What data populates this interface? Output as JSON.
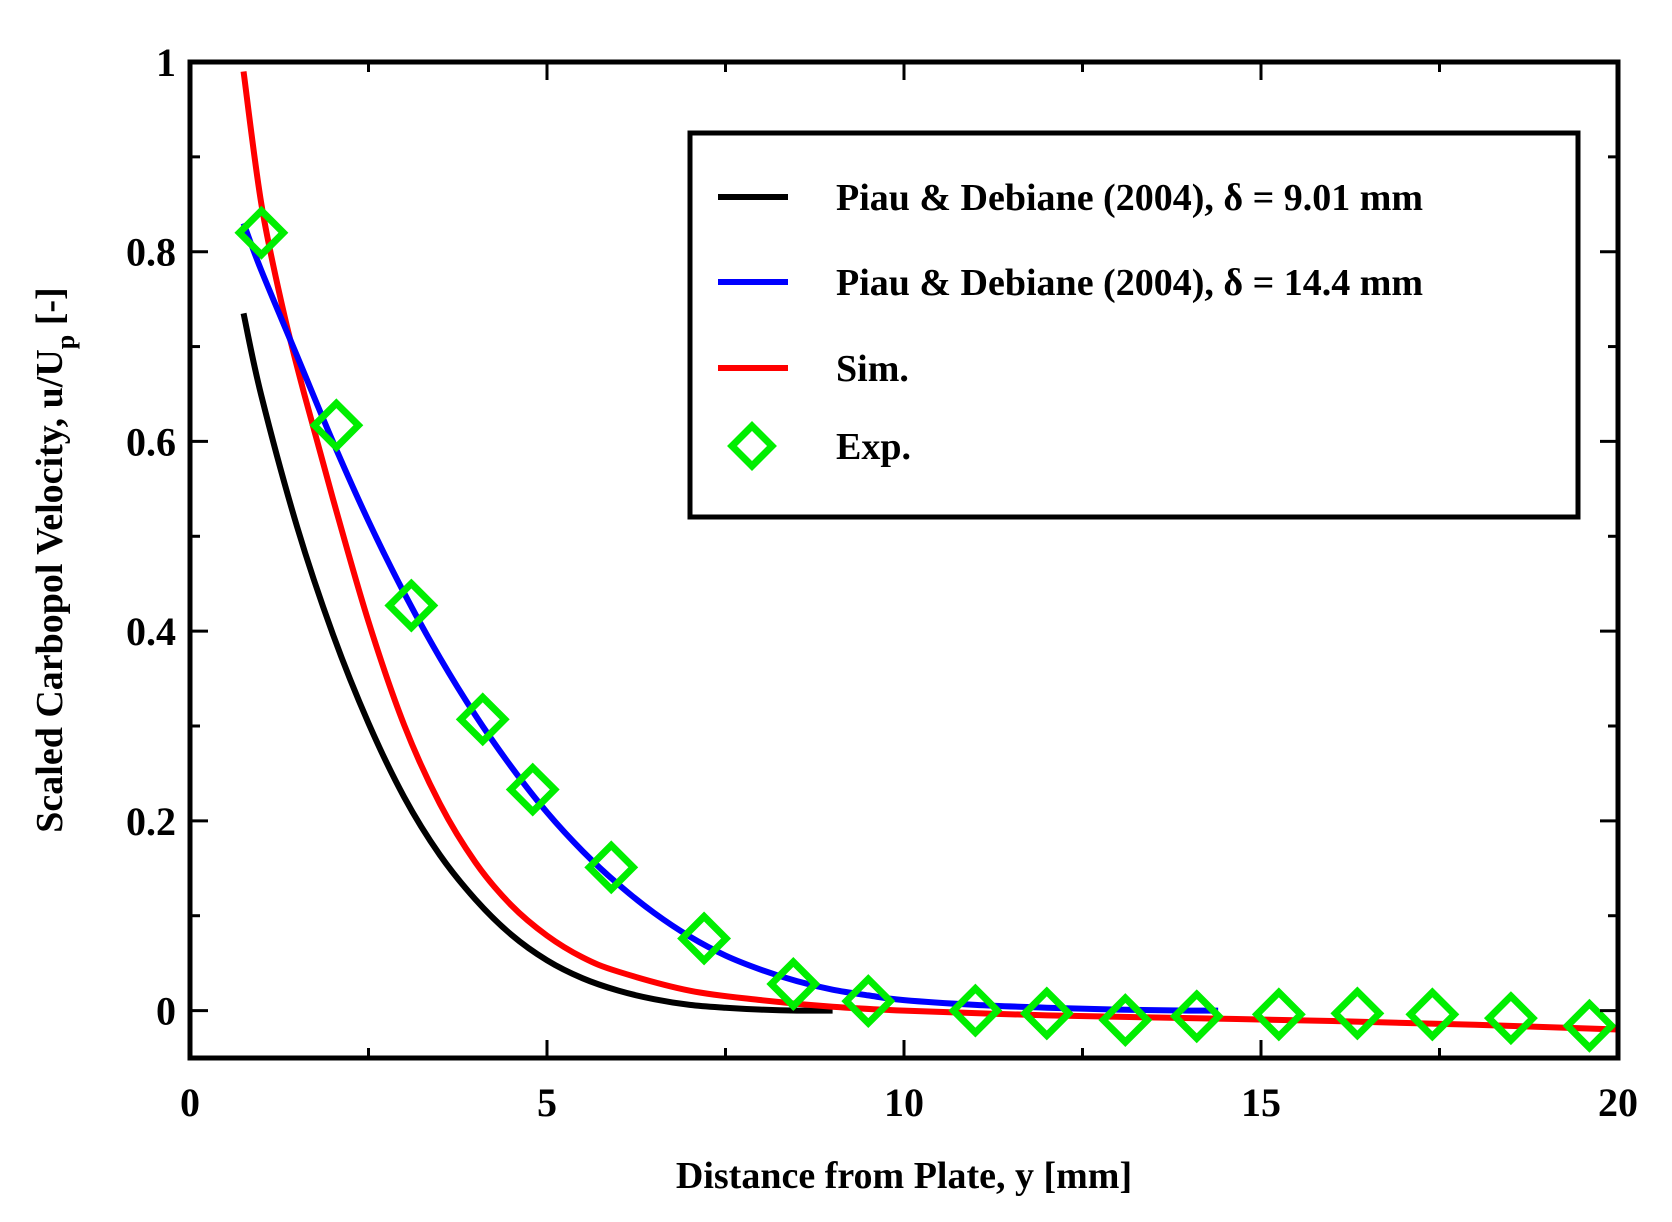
{
  "chart_data": {
    "type": "line",
    "title": "",
    "xlabel": "Distance from Plate, y [mm]",
    "ylabel_main": "Scaled Carbopol Velocity, u/U",
    "ylabel_sub": "p",
    "ylabel_tail": " [-]",
    "xlim": [
      0,
      20
    ],
    "ylim": [
      -0.05,
      1
    ],
    "x_ticks": [
      0,
      5,
      10,
      15,
      20
    ],
    "x_tick_labels": [
      "0",
      "5",
      "10",
      "15",
      "20"
    ],
    "y_ticks": [
      0,
      0.2,
      0.4,
      0.6,
      0.8,
      1
    ],
    "y_tick_labels": [
      "0",
      "0.2",
      "0.4",
      "0.6",
      "0.8",
      "1"
    ],
    "grid": false,
    "legend_position": "top-right",
    "series": [
      {
        "name": "Piau & Debiane (2004), δ = 9.01 mm",
        "kind": "line",
        "color": "#000000",
        "x": [
          0.75,
          1.0,
          1.5,
          2.0,
          2.5,
          3.0,
          3.5,
          4.0,
          4.5,
          5.0,
          5.5,
          6.0,
          6.5,
          7.0,
          7.5,
          8.0,
          8.5,
          9.0
        ],
        "values": [
          0.735,
          0.648,
          0.51,
          0.397,
          0.303,
          0.225,
          0.164,
          0.117,
          0.08,
          0.053,
          0.034,
          0.021,
          0.012,
          0.006,
          0.003,
          0.001,
          0.0,
          0.0
        ]
      },
      {
        "name": "Piau & Debiane (2004), δ = 14.4 mm",
        "kind": "line",
        "color": "#0000ff",
        "x": [
          0.75,
          1.0,
          1.5,
          2.0,
          2.5,
          3.0,
          3.5,
          4.0,
          4.5,
          5.0,
          5.5,
          6.0,
          6.5,
          7.0,
          7.5,
          8.0,
          8.5,
          9.0,
          9.5,
          10.0,
          11.0,
          12.0,
          13.0,
          14.0,
          14.4
        ],
        "values": [
          0.83,
          0.78,
          0.69,
          0.6,
          0.516,
          0.44,
          0.372,
          0.311,
          0.257,
          0.209,
          0.168,
          0.133,
          0.103,
          0.078,
          0.058,
          0.043,
          0.031,
          0.022,
          0.016,
          0.011,
          0.006,
          0.003,
          0.001,
          0.0,
          0.0
        ]
      },
      {
        "name": "Sim.",
        "kind": "line",
        "color": "#ff0000",
        "x": [
          0.75,
          1.0,
          1.3,
          1.6,
          2.0,
          2.5,
          3.0,
          3.5,
          4.0,
          4.5,
          5.0,
          5.5,
          6.0,
          7.0,
          8.0,
          9.0,
          10.0,
          12.0,
          14.0,
          16.0,
          18.0,
          20.0
        ],
        "values": [
          0.99,
          0.85,
          0.74,
          0.65,
          0.54,
          0.41,
          0.301,
          0.218,
          0.156,
          0.111,
          0.079,
          0.056,
          0.041,
          0.021,
          0.011,
          0.004,
          0.0,
          -0.005,
          -0.008,
          -0.011,
          -0.015,
          -0.02
        ]
      },
      {
        "name": "Exp.",
        "kind": "scatter",
        "marker": "diamond",
        "color": "#00ee00",
        "x": [
          1.0,
          2.05,
          3.1,
          4.1,
          4.8,
          5.9,
          7.2,
          8.45,
          9.5,
          11.0,
          12.0,
          13.1,
          14.1,
          15.25,
          16.35,
          17.4,
          18.5,
          19.6
        ],
        "values": [
          0.82,
          0.617,
          0.427,
          0.307,
          0.233,
          0.151,
          0.076,
          0.028,
          0.01,
          0.0,
          -0.003,
          -0.01,
          -0.006,
          -0.004,
          -0.003,
          -0.004,
          -0.008,
          -0.016
        ]
      }
    ]
  }
}
